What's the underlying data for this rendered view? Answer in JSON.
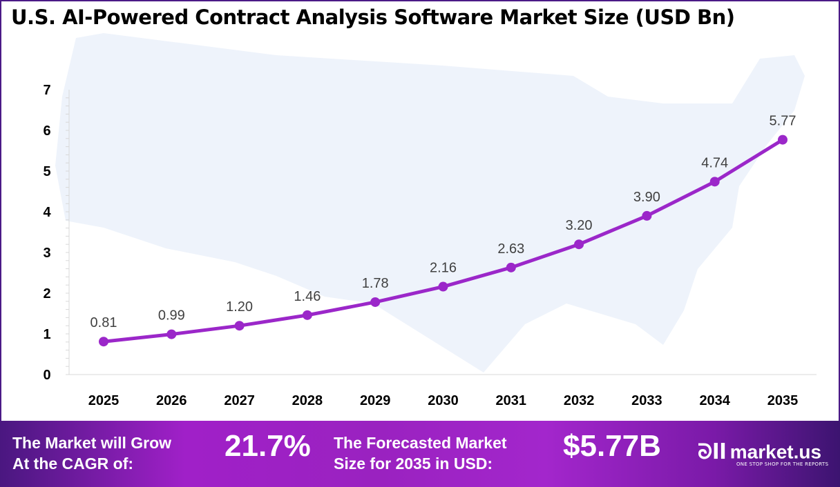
{
  "title": "U.S. AI-Powered Contract Analysis Software Market Size (USD Bn)",
  "chart_data": {
    "type": "line",
    "title": "U.S. AI-Powered Contract Analysis Software Market Size (USD Bn)",
    "categories": [
      "2025",
      "2026",
      "2027",
      "2028",
      "2029",
      "2030",
      "2031",
      "2032",
      "2033",
      "2034",
      "2035"
    ],
    "values": [
      0.81,
      0.99,
      1.2,
      1.46,
      1.78,
      2.16,
      2.63,
      3.2,
      3.9,
      4.74,
      5.77
    ],
    "data_labels": [
      "0.81",
      "0.99",
      "1.20",
      "1.46",
      "1.78",
      "2.16",
      "2.63",
      "3.20",
      "3.90",
      "4.74",
      "5.77"
    ],
    "yticks": [
      "0",
      "1",
      "2",
      "3",
      "4",
      "5",
      "6",
      "7"
    ],
    "ylim": [
      0,
      7
    ],
    "grid": false,
    "line_color": "#9b27c9",
    "background_map": "us-map"
  },
  "footer": {
    "cagr_label_1": "The Market will Grow",
    "cagr_label_2": "At the CAGR of:",
    "cagr_value": "21.7%",
    "forecast_label_1": "The Forecasted Market",
    "forecast_label_2": "Size for 2035 in USD:",
    "forecast_value": "$5.77B",
    "brand": "market.us",
    "tagline": "ONE STOP SHOP FOR THE REPORTS"
  }
}
